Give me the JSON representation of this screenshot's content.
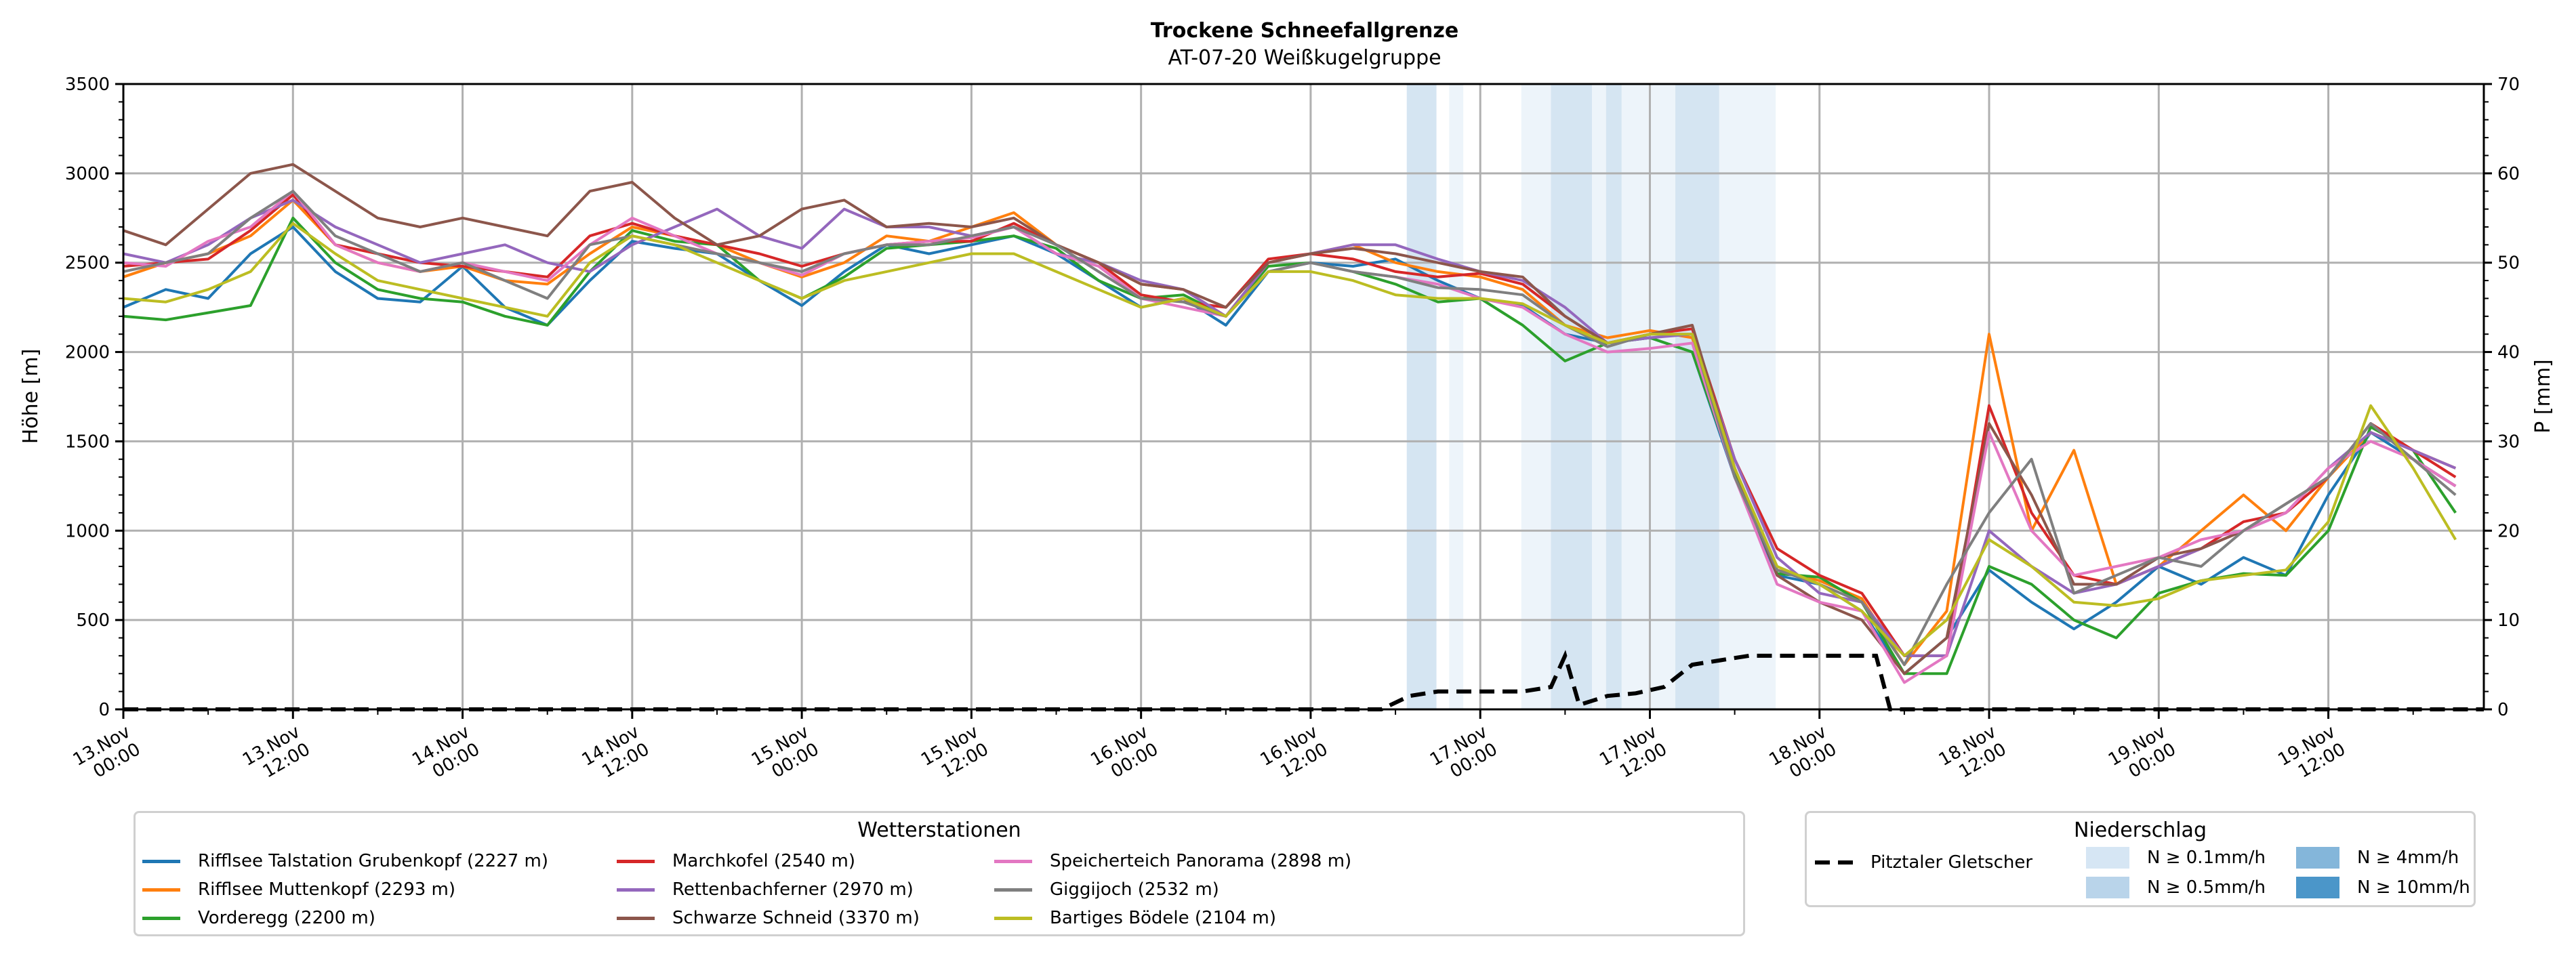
{
  "chart_data": {
    "type": "line",
    "title": "Trockene Schneefallgrenze",
    "subtitle": "AT-07-20 Weißkugelgruppe",
    "ylabel": "Höhe [m]",
    "ylabel_right": "P [mm]",
    "ylim": [
      0,
      3500
    ],
    "ylim_right": [
      0,
      70
    ],
    "yticks": [
      "0",
      "500",
      "1000",
      "1500",
      "2000",
      "2500",
      "3000",
      "3500"
    ],
    "yticks_right": [
      "0",
      "10",
      "20",
      "30",
      "40",
      "50",
      "60",
      "70"
    ],
    "x_unit": "hours since 13.Nov 00:00",
    "xlim": [
      0,
      167
    ],
    "xticks": [
      {
        "h": 0,
        "l1": "13.Nov",
        "l2": "00:00"
      },
      {
        "h": 12,
        "l1": "13.Nov",
        "l2": "12:00"
      },
      {
        "h": 24,
        "l1": "14.Nov",
        "l2": "00:00"
      },
      {
        "h": 36,
        "l1": "14.Nov",
        "l2": "12:00"
      },
      {
        "h": 48,
        "l1": "15.Nov",
        "l2": "00:00"
      },
      {
        "h": 60,
        "l1": "15.Nov",
        "l2": "12:00"
      },
      {
        "h": 72,
        "l1": "16.Nov",
        "l2": "00:00"
      },
      {
        "h": 84,
        "l1": "16.Nov",
        "l2": "12:00"
      },
      {
        "h": 96,
        "l1": "17.Nov",
        "l2": "00:00"
      },
      {
        "h": 108,
        "l1": "17.Nov",
        "l2": "12:00"
      },
      {
        "h": 120,
        "l1": "18.Nov",
        "l2": "00:00"
      },
      {
        "h": 132,
        "l1": "18.Nov",
        "l2": "12:00"
      },
      {
        "h": 144,
        "l1": "19.Nov",
        "l2": "00:00"
      },
      {
        "h": 156,
        "l1": "19.Nov",
        "l2": "12:00"
      }
    ],
    "grid": true,
    "x": [
      0,
      3,
      6,
      9,
      12,
      15,
      18,
      21,
      24,
      27,
      30,
      33,
      36,
      39,
      42,
      45,
      48,
      51,
      54,
      57,
      60,
      63,
      66,
      69,
      72,
      75,
      78,
      81,
      84,
      87,
      90,
      93,
      96,
      99,
      102,
      105,
      108,
      111,
      114,
      117,
      120,
      123,
      126,
      129,
      132,
      135,
      138,
      141,
      144,
      147,
      150,
      153,
      156,
      159,
      162,
      165
    ],
    "series": [
      {
        "name": "Rifflsee Talstation Grubenkopf (2227 m)",
        "color": "#1f77b4",
        "values": [
          2250,
          2350,
          2300,
          2550,
          2700,
          2450,
          2300,
          2280,
          2480,
          2250,
          2150,
          2400,
          2620,
          2580,
          2550,
          2400,
          2260,
          2450,
          2600,
          2550,
          2600,
          2650,
          2550,
          2400,
          2250,
          2300,
          2150,
          2450,
          2500,
          2480,
          2520,
          2400,
          2300,
          2260,
          2100,
          2050,
          2080,
          2000,
          1300,
          750,
          700,
          550,
          200,
          400,
          780,
          600,
          450,
          600,
          800,
          700,
          850,
          750,
          1200,
          1550,
          1400,
          1250
        ]
      },
      {
        "name": "Rifflsee Muttenkopf (2293 m)",
        "color": "#ff7f0e",
        "values": [
          2420,
          2500,
          2550,
          2650,
          2850,
          2600,
          2500,
          2450,
          2480,
          2400,
          2380,
          2550,
          2700,
          2650,
          2600,
          2500,
          2420,
          2500,
          2650,
          2620,
          2700,
          2780,
          2600,
          2500,
          2380,
          2350,
          2200,
          2500,
          2550,
          2600,
          2500,
          2450,
          2420,
          2350,
          2150,
          2080,
          2120,
          2080,
          1350,
          780,
          720,
          620,
          250,
          550,
          2100,
          1000,
          1450,
          700,
          800,
          1000,
          1200,
          1000,
          1300,
          1550,
          1450,
          1350
        ]
      },
      {
        "name": "Vorderegg (2200 m)",
        "color": "#2ca02c",
        "values": [
          2200,
          2180,
          2220,
          2260,
          2750,
          2500,
          2350,
          2300,
          2280,
          2200,
          2150,
          2450,
          2680,
          2620,
          2600,
          2400,
          2300,
          2420,
          2580,
          2600,
          2620,
          2650,
          2580,
          2400,
          2300,
          2320,
          2200,
          2480,
          2500,
          2450,
          2380,
          2280,
          2300,
          2150,
          1950,
          2050,
          2080,
          2000,
          1320,
          760,
          740,
          600,
          200,
          200,
          800,
          700,
          500,
          400,
          650,
          720,
          760,
          750,
          1000,
          1580,
          1450,
          1100
        ]
      },
      {
        "name": "Marchkofel (2540 m)",
        "color": "#d62728",
        "values": [
          2480,
          2500,
          2520,
          2680,
          2880,
          2600,
          2550,
          2500,
          2480,
          2450,
          2420,
          2650,
          2720,
          2650,
          2600,
          2550,
          2480,
          2550,
          2600,
          2620,
          2620,
          2720,
          2600,
          2500,
          2320,
          2280,
          2250,
          2520,
          2550,
          2520,
          2450,
          2420,
          2440,
          2380,
          2200,
          2050,
          2100,
          2130,
          1400,
          900,
          750,
          650,
          300,
          300,
          1700,
          1100,
          750,
          700,
          800,
          900,
          1050,
          1100,
          1300,
          1600,
          1450,
          1300
        ]
      },
      {
        "name": "Rettenbachferner (2970 m)",
        "color": "#9467bd",
        "values": [
          2550,
          2500,
          2600,
          2750,
          2850,
          2700,
          2600,
          2500,
          2550,
          2600,
          2500,
          2450,
          2600,
          2700,
          2800,
          2650,
          2580,
          2800,
          2700,
          2700,
          2650,
          2700,
          2550,
          2500,
          2400,
          2350,
          2200,
          2500,
          2550,
          2600,
          2600,
          2520,
          2450,
          2400,
          2250,
          2050,
          2080,
          2100,
          1400,
          850,
          650,
          600,
          300,
          300,
          1000,
          800,
          650,
          700,
          800,
          900,
          1000,
          1100,
          1350,
          1550,
          1450,
          1350
        ]
      },
      {
        "name": "Schwarze Schneid (3370 m)",
        "color": "#8c564b",
        "values": [
          2680,
          2600,
          2800,
          3000,
          3050,
          2900,
          2750,
          2700,
          2750,
          2700,
          2650,
          2900,
          2950,
          2750,
          2600,
          2650,
          2800,
          2850,
          2700,
          2720,
          2700,
          2750,
          2600,
          2500,
          2380,
          2350,
          2250,
          2500,
          2550,
          2580,
          2550,
          2500,
          2450,
          2420,
          2200,
          2050,
          2100,
          2150,
          1350,
          750,
          600,
          500,
          200,
          400,
          1600,
          1200,
          700,
          700,
          850,
          900,
          1000,
          1150,
          1300,
          1600,
          1400,
          1250
        ]
      },
      {
        "name": "Speicherteich Panorama (2898 m)",
        "color": "#e377c2",
        "values": [
          2500,
          2480,
          2620,
          2700,
          2900,
          2600,
          2500,
          2450,
          2500,
          2450,
          2400,
          2600,
          2750,
          2650,
          2550,
          2500,
          2430,
          2550,
          2600,
          2620,
          2640,
          2700,
          2550,
          2480,
          2300,
          2250,
          2200,
          2450,
          2500,
          2450,
          2420,
          2380,
          2300,
          2250,
          2100,
          2000,
          2020,
          2050,
          1300,
          700,
          600,
          550,
          150,
          300,
          1550,
          1000,
          750,
          800,
          850,
          950,
          1000,
          1100,
          1350,
          1500,
          1400,
          1250
        ]
      },
      {
        "name": "Giggijoch (2532 m)",
        "color": "#7f7f7f",
        "values": [
          2450,
          2500,
          2550,
          2750,
          2900,
          2650,
          2550,
          2450,
          2500,
          2400,
          2300,
          2600,
          2650,
          2600,
          2550,
          2500,
          2450,
          2550,
          2600,
          2600,
          2650,
          2700,
          2600,
          2450,
          2300,
          2280,
          2200,
          2450,
          2500,
          2450,
          2420,
          2360,
          2350,
          2320,
          2150,
          2030,
          2100,
          2100,
          1300,
          780,
          700,
          600,
          250,
          700,
          1100,
          1400,
          650,
          750,
          850,
          800,
          1000,
          1150,
          1300,
          1600,
          1400,
          1200
        ]
      },
      {
        "name": "Bartiges Bödele (2104 m)",
        "color": "#bcbd22",
        "values": [
          2300,
          2280,
          2350,
          2450,
          2720,
          2550,
          2400,
          2350,
          2300,
          2250,
          2200,
          2500,
          2650,
          2600,
          2500,
          2400,
          2300,
          2400,
          2450,
          2500,
          2550,
          2550,
          2450,
          2350,
          2250,
          2300,
          2200,
          2450,
          2450,
          2400,
          2320,
          2300,
          2300,
          2270,
          2150,
          2050,
          2100,
          2100,
          1350,
          800,
          700,
          550,
          300,
          500,
          950,
          800,
          600,
          580,
          620,
          720,
          750,
          780,
          1050,
          1700,
          1350,
          950
        ]
      }
    ],
    "precip_series": {
      "name": "Pitztaler Gletscher",
      "color": "#000000",
      "axis": "right",
      "x": [
        0,
        89,
        91,
        93,
        95,
        97,
        99,
        101,
        102,
        103,
        104,
        105,
        107,
        109,
        111,
        113,
        115,
        117,
        119,
        121,
        123,
        124,
        125,
        167
      ],
      "values": [
        0,
        0,
        1.5,
        2,
        2,
        2,
        2,
        2.5,
        6,
        0.5,
        1,
        1.5,
        1.8,
        2.5,
        5,
        5.5,
        6,
        6,
        6,
        6,
        6,
        6,
        0,
        0
      ]
    },
    "precip_bands": [
      {
        "from": 90.8,
        "to": 92.9,
        "level": "N ≥ 0.5mm/h"
      },
      {
        "from": 93.8,
        "to": 94.8,
        "level": "N ≥ 0.1mm/h"
      },
      {
        "from": 98.9,
        "to": 101.0,
        "level": "N ≥ 0.1mm/h"
      },
      {
        "from": 101.0,
        "to": 103.9,
        "level": "N ≥ 0.5mm/h"
      },
      {
        "from": 103.9,
        "to": 104.9,
        "level": "N ≥ 0.1mm/h"
      },
      {
        "from": 104.9,
        "to": 106.0,
        "level": "N ≥ 0.5mm/h"
      },
      {
        "from": 106.0,
        "to": 109.8,
        "level": "N ≥ 0.1mm/h"
      },
      {
        "from": 109.8,
        "to": 112.9,
        "level": "N ≥ 0.5mm/h"
      },
      {
        "from": 112.9,
        "to": 116.9,
        "level": "N ≥ 0.1mm/h"
      }
    ],
    "legend_stations": {
      "title": "Wetterstationen",
      "placement": "bottom-left"
    },
    "legend_precip": {
      "title": "Niederschlag",
      "placement": "bottom-right",
      "line_label": "Pitztaler Gletscher",
      "levels": [
        {
          "label": "N ≥ 0.1mm/h",
          "color": "#d6e6f4"
        },
        {
          "label": "N ≥ 0.5mm/h",
          "color": "#b9d4ea"
        },
        {
          "label": "N ≥ 4mm/h",
          "color": "#84b6da"
        },
        {
          "label": "N ≥ 10mm/h",
          "color": "#4b96c9"
        }
      ]
    }
  }
}
